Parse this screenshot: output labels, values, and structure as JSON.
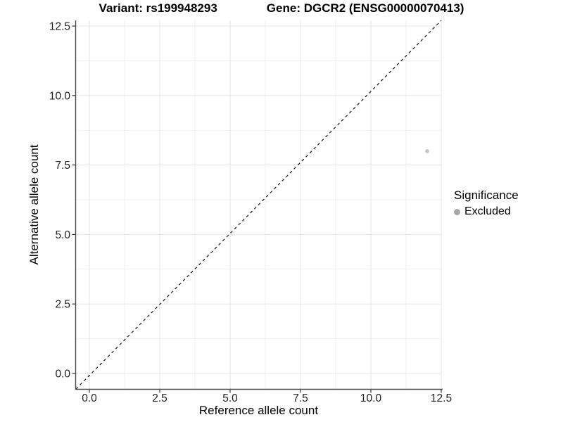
{
  "title": {
    "variant": "Variant: rs199948293",
    "gene": "Gene: DGCR2 (ENSG00000070413)"
  },
  "axis_titles": {
    "x": "Reference allele count",
    "y": "Alternative allele count"
  },
  "legend": {
    "title": "Significance",
    "items": [
      {
        "label": "Excluded",
        "color": "#a6a6a6"
      }
    ]
  },
  "chart_data": {
    "type": "scatter",
    "title": "Variant: rs199948293    Gene: DGCR2 (ENSG00000070413)",
    "xlabel": "Reference allele count",
    "ylabel": "Alternative allele count",
    "xlim": [
      -0.48,
      12.5
    ],
    "ylim": [
      -0.56,
      12.7
    ],
    "x_ticks": [
      0,
      2.5,
      5,
      7.5,
      10,
      12.5
    ],
    "x_tick_labels": [
      "0.0",
      "2.5",
      "5.0",
      "7.5",
      "10.0",
      "12.5"
    ],
    "y_ticks": [
      0,
      2.5,
      5,
      7.5,
      10,
      12.5
    ],
    "y_tick_labels": [
      "0.0",
      "2.5",
      "5.0",
      "7.5",
      "10.0",
      "12.5"
    ],
    "minor_ticks": [
      1.25,
      3.75,
      6.25,
      8.75,
      11.25
    ],
    "grid": "on",
    "legend_position": "right",
    "series": [
      {
        "name": "Excluded",
        "color": "#c3c3c3",
        "points": [
          [
            12,
            8
          ]
        ]
      }
    ],
    "reference_line": {
      "type": "identity",
      "style": "dashed",
      "color": "#111111"
    },
    "colors": {
      "grid_major": "#e6e6e6",
      "grid_minor": "#f1f1f1",
      "axis_line": "#4a4a4a",
      "tick": "#333333",
      "tick_label": "#222222"
    }
  }
}
